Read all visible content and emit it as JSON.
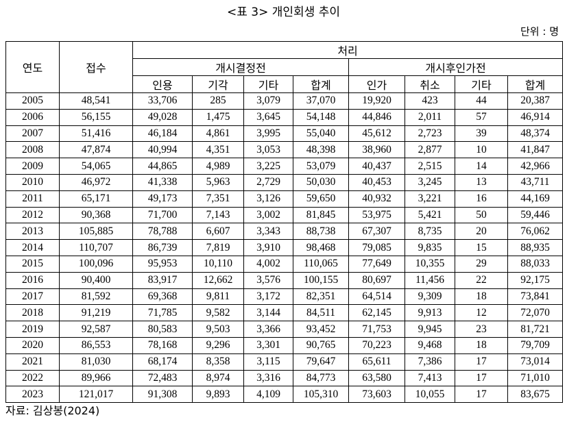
{
  "header": {
    "title": "<표 3> 개인회생 추이",
    "unit": "단위 : 명"
  },
  "table": {
    "headers": {
      "year": "연도",
      "received": "접수",
      "processed": "처리",
      "groups": [
        "개시결정전",
        "개시후인가전"
      ],
      "columns": [
        "인용",
        "기각",
        "기타",
        "합계",
        "인가",
        "취소",
        "기타",
        "합계"
      ]
    },
    "rows": [
      [
        "2005",
        "48,541",
        "33,706",
        "285",
        "3,079",
        "37,070",
        "19,920",
        "423",
        "44",
        "20,387"
      ],
      [
        "2006",
        "56,155",
        "49,028",
        "1,475",
        "3,645",
        "54,148",
        "44,846",
        "2,011",
        "57",
        "46,914"
      ],
      [
        "2007",
        "51,416",
        "46,184",
        "4,861",
        "3,995",
        "55,040",
        "45,612",
        "2,723",
        "39",
        "48,374"
      ],
      [
        "2008",
        "47,874",
        "40,994",
        "4,351",
        "3,053",
        "48,398",
        "38,960",
        "2,877",
        "10",
        "41,847"
      ],
      [
        "2009",
        "54,065",
        "44,865",
        "4,989",
        "3,225",
        "53,079",
        "40,437",
        "2,515",
        "14",
        "42,966"
      ],
      [
        "2010",
        "46,972",
        "41,338",
        "5,963",
        "2,729",
        "50,030",
        "40,453",
        "3,245",
        "13",
        "43,711"
      ],
      [
        "2011",
        "65,171",
        "49,173",
        "7,351",
        "3,126",
        "59,650",
        "40,932",
        "3,221",
        "16",
        "44,169"
      ],
      [
        "2012",
        "90,368",
        "71,700",
        "7,143",
        "3,002",
        "81,845",
        "53,975",
        "5,421",
        "50",
        "59,446"
      ],
      [
        "2013",
        "105,885",
        "78,788",
        "6,607",
        "3,343",
        "88,738",
        "67,307",
        "8,735",
        "20",
        "76,062"
      ],
      [
        "2014",
        "110,707",
        "86,739",
        "7,819",
        "3,910",
        "98,468",
        "79,085",
        "9,835",
        "15",
        "88,935"
      ],
      [
        "2015",
        "100,096",
        "95,953",
        "10,110",
        "4,002",
        "110,065",
        "77,649",
        "10,355",
        "29",
        "88,033"
      ],
      [
        "2016",
        "90,400",
        "83,917",
        "12,662",
        "3,576",
        "100,155",
        "80,697",
        "11,456",
        "22",
        "92,175"
      ],
      [
        "2017",
        "81,592",
        "69,368",
        "9,811",
        "3,172",
        "82,351",
        "64,514",
        "9,309",
        "18",
        "73,841"
      ],
      [
        "2018",
        "91,219",
        "71,785",
        "9,582",
        "3,144",
        "84,511",
        "62,145",
        "9,913",
        "12",
        "72,070"
      ],
      [
        "2019",
        "92,587",
        "80,583",
        "9,503",
        "3,366",
        "93,452",
        "71,753",
        "9,945",
        "23",
        "81,721"
      ],
      [
        "2020",
        "86,553",
        "78,168",
        "9,296",
        "3,301",
        "90,765",
        "70,223",
        "9,468",
        "18",
        "79,709"
      ],
      [
        "2021",
        "81,030",
        "68,174",
        "8,358",
        "3,115",
        "79,647",
        "65,611",
        "7,386",
        "17",
        "73,014"
      ],
      [
        "2022",
        "89,966",
        "72,483",
        "8,974",
        "3,316",
        "84,773",
        "63,580",
        "7,413",
        "17",
        "71,010"
      ],
      [
        "2023",
        "121,017",
        "91,308",
        "9,893",
        "4,109",
        "105,310",
        "73,603",
        "10,055",
        "17",
        "83,675"
      ]
    ]
  },
  "source": "자료: 김상봉(2024)"
}
